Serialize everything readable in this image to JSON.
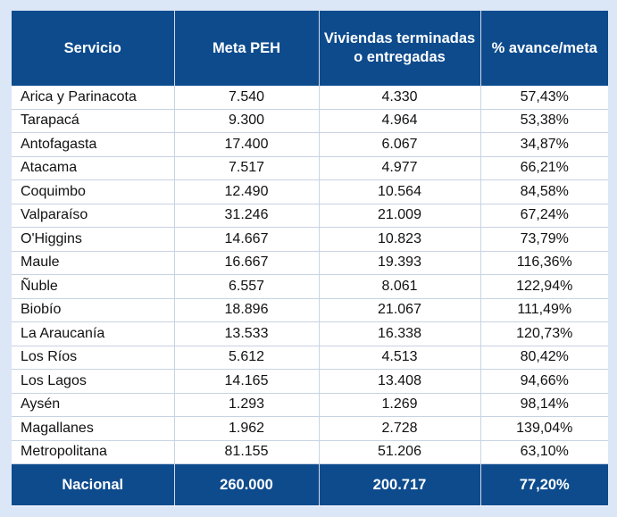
{
  "headers": {
    "servicio": "Servicio",
    "meta": "Meta PEH",
    "viviendas": "Viviendas terminadas o entregadas",
    "avance": "% avance/meta"
  },
  "rows": [
    {
      "region": "Arica y Parinacota",
      "meta": "7.540",
      "viviendas": "4.330",
      "avance": "57,43%"
    },
    {
      "region": "Tarapacá",
      "meta": "9.300",
      "viviendas": "4.964",
      "avance": "53,38%"
    },
    {
      "region": "Antofagasta",
      "meta": "17.400",
      "viviendas": "6.067",
      "avance": "34,87%"
    },
    {
      "region": "Atacama",
      "meta": "7.517",
      "viviendas": "4.977",
      "avance": "66,21%"
    },
    {
      "region": "Coquimbo",
      "meta": "12.490",
      "viviendas": "10.564",
      "avance": "84,58%"
    },
    {
      "region": "Valparaíso",
      "meta": "31.246",
      "viviendas": "21.009",
      "avance": "67,24%"
    },
    {
      "region": "O'Higgins",
      "meta": "14.667",
      "viviendas": "10.823",
      "avance": "73,79%"
    },
    {
      "region": "Maule",
      "meta": "16.667",
      "viviendas": "19.393",
      "avance": "116,36%"
    },
    {
      "region": "Ñuble",
      "meta": "6.557",
      "viviendas": "8.061",
      "avance": "122,94%"
    },
    {
      "region": "Biobío",
      "meta": "18.896",
      "viviendas": "21.067",
      "avance": "111,49%"
    },
    {
      "region": "La Araucanía",
      "meta": "13.533",
      "viviendas": "16.338",
      "avance": "120,73%"
    },
    {
      "region": "Los Ríos",
      "meta": "5.612",
      "viviendas": "4.513",
      "avance": "80,42%"
    },
    {
      "region": "Los Lagos",
      "meta": "14.165",
      "viviendas": "13.408",
      "avance": "94,66%"
    },
    {
      "region": "Aysén",
      "meta": "1.293",
      "viviendas": "1.269",
      "avance": "98,14%"
    },
    {
      "region": "Magallanes",
      "meta": "1.962",
      "viviendas": "2.728",
      "avance": "139,04%"
    },
    {
      "region": "Metropolitana",
      "meta": "81.155",
      "viviendas": "51.206",
      "avance": "63,10%"
    }
  ],
  "total": {
    "label": "Nacional",
    "meta": "260.000",
    "viviendas": "200.717",
    "avance": "77,20%"
  },
  "colors": {
    "header_bg": "#0d4b8d",
    "header_text": "#ffffff",
    "page_bg": "#dbe6f7",
    "grid_line": "#c7d3e3"
  }
}
